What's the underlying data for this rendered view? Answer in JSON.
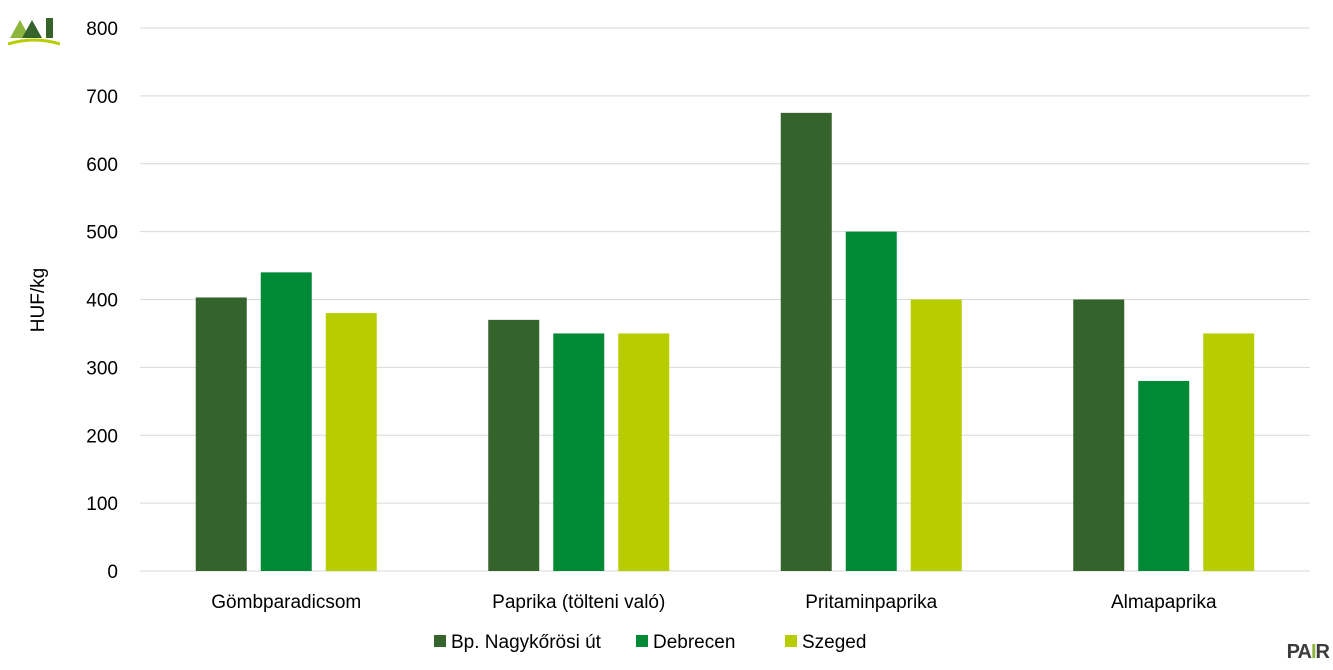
{
  "logos": {
    "top_left": "AKI",
    "bottom_right": "PAIR"
  },
  "colors": {
    "grid": "#d9d9d9",
    "axis": "#d9d9d9",
    "background": "#ffffff"
  },
  "chart_data": {
    "type": "bar",
    "title": "",
    "xlabel": "",
    "ylabel": "HUF/kg",
    "ylim": [
      0,
      800
    ],
    "yticks": [
      0,
      100,
      200,
      300,
      400,
      500,
      600,
      700,
      800
    ],
    "grid": true,
    "legend_position": "bottom",
    "categories": [
      "Gömbparadicsom",
      "Paprika (tölteni való)",
      "Pritaminpaprika",
      "Almapaprika"
    ],
    "series": [
      {
        "name": "Bp. Nagykőrösi út",
        "color": "#35632c",
        "values": [
          403,
          370,
          675,
          400
        ]
      },
      {
        "name": "Debrecen",
        "color": "#008a36",
        "values": [
          440,
          350,
          500,
          280
        ]
      },
      {
        "name": "Szeged",
        "color": "#b8cd00",
        "values": [
          380,
          350,
          400,
          350
        ]
      }
    ]
  }
}
